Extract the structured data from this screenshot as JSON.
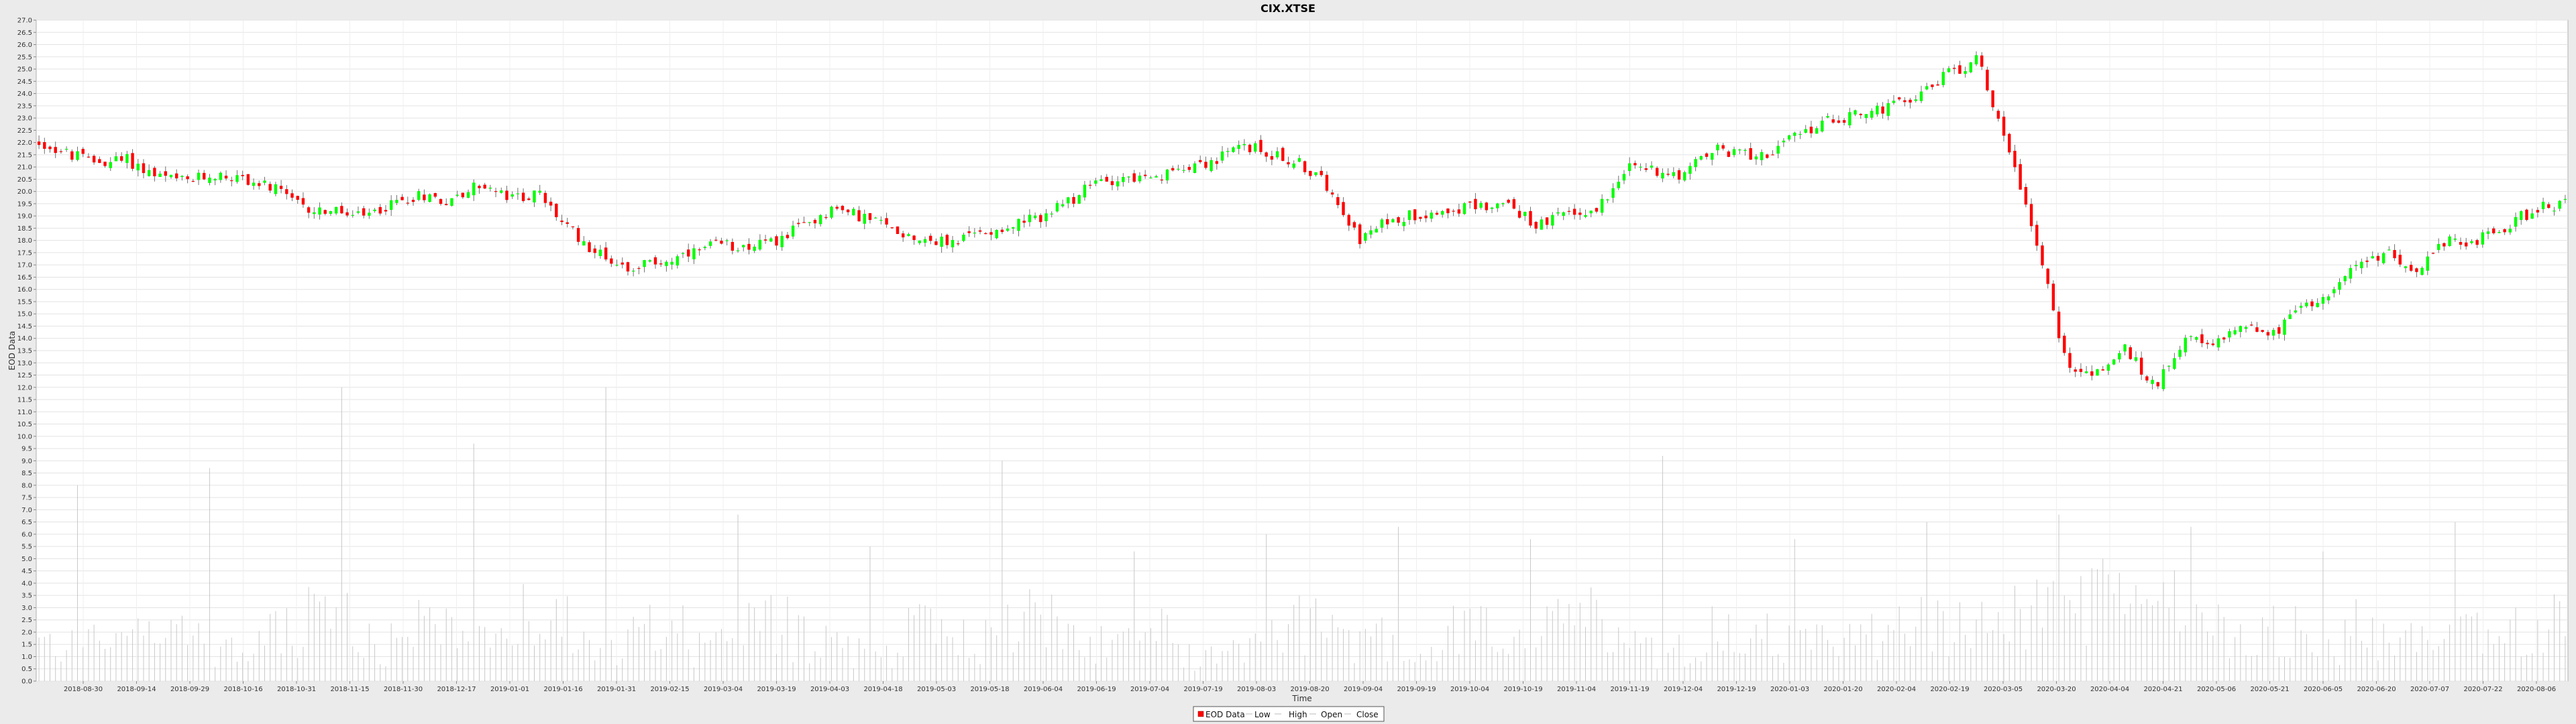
{
  "chart_data": {
    "type": "candlestick",
    "title": "CIX.XTSE",
    "xlabel": "Time",
    "ylabel": "EOD Data",
    "ylim": [
      0.0,
      27.0
    ],
    "y_tick_step": 0.5,
    "x_tick_labels": [
      "2018-08-30",
      "2018-09-14",
      "2018-09-29",
      "2018-10-16",
      "2018-10-31",
      "2018-11-15",
      "2018-11-30",
      "2018-12-17",
      "2019-01-01",
      "2019-01-16",
      "2019-01-31",
      "2019-02-15",
      "2019-03-04",
      "2019-03-19",
      "2019-04-03",
      "2019-04-18",
      "2019-05-03",
      "2019-05-18",
      "2019-06-04",
      "2019-06-19",
      "2019-07-04",
      "2019-07-19",
      "2019-08-03",
      "2019-08-20",
      "2019-09-04",
      "2019-09-19",
      "2019-10-04",
      "2019-10-19",
      "2019-11-04",
      "2019-11-19",
      "2019-12-04",
      "2019-12-19",
      "2020-01-03",
      "2020-01-20",
      "2020-02-04",
      "2020-02-19",
      "2020-03-05",
      "2020-03-20",
      "2020-04-04",
      "2020-04-21",
      "2020-05-06",
      "2020-05-21",
      "2020-06-05",
      "2020-06-20",
      "2020-07-07",
      "2020-07-22",
      "2020-08-06"
    ],
    "close_path": [
      22.0,
      21.5,
      21.2,
      21.3,
      20.6,
      20.4,
      20.7,
      20.5,
      20.1,
      19.3,
      19.2,
      18.9,
      19.5,
      19.9,
      19.6,
      20.3,
      19.7,
      19.9,
      18.5,
      17.5,
      16.9,
      17.1,
      17.3,
      17.8,
      17.8,
      17.9,
      18.6,
      19.3,
      19.0,
      18.5,
      18.1,
      17.9,
      18.3,
      18.6,
      18.9,
      19.5,
      20.4,
      20.6,
      20.4,
      21.1,
      21.2,
      21.9,
      21.5,
      21.1,
      20.1,
      18.0,
      18.9,
      19.1,
      19.3,
      19.4,
      19.5,
      18.6,
      19.1,
      19.2,
      21.0,
      20.9,
      20.7,
      21.7,
      21.5,
      21.6,
      22.4,
      22.9,
      23.2,
      23.4,
      24.0,
      24.8,
      25.4,
      22.0,
      18.0,
      13.0,
      12.5,
      13.6,
      12.0,
      14.0,
      13.6,
      14.7,
      14.1,
      15.2,
      16.0,
      17.0,
      17.5,
      16.8,
      18.0,
      18.0,
      18.6,
      19.3,
      19.5
    ],
    "volume_level": [
      2.0,
      2.5,
      3.0,
      1.5,
      2.5,
      3.5,
      2.0,
      2.8,
      2.2,
      3.4,
      2.0,
      2.6,
      1.8,
      3.0,
      2.4,
      1.6,
      2.8,
      2.2,
      3.2,
      2.0,
      2.6,
      1.4,
      2.2,
      3.0,
      2.4,
      1.8,
      2.6,
      2.0,
      3.2,
      2.2,
      1.6,
      2.8,
      2.4,
      2.0,
      2.6,
      3.0,
      3.4,
      4.0,
      4.6,
      3.8,
      3.0,
      2.6,
      2.2,
      2.8,
      2.0,
      2.4,
      3.0
    ],
    "volume_spikes": [
      8.0,
      8.7,
      12.0,
      9.7,
      12.0,
      6.8,
      5.5,
      9.0,
      5.3,
      6.0,
      6.3,
      5.8,
      9.2,
      5.8,
      6.5,
      6.8,
      6.3,
      5.3,
      6.5
    ],
    "series": [
      {
        "name": "EOD Data",
        "color": "#ff0000"
      },
      {
        "name": "Low",
        "color": "#c0c0c0"
      },
      {
        "name": "High",
        "color": "#c0c0c0"
      },
      {
        "name": "Open",
        "color": "#c0c0c0"
      },
      {
        "name": "Close",
        "color": "#c0c0c0"
      }
    ],
    "up_color": "#00ff00",
    "down_color": "#ff0000",
    "volume_color": "#c8c8c8",
    "grid": true,
    "legend_position": "bottom-center"
  }
}
